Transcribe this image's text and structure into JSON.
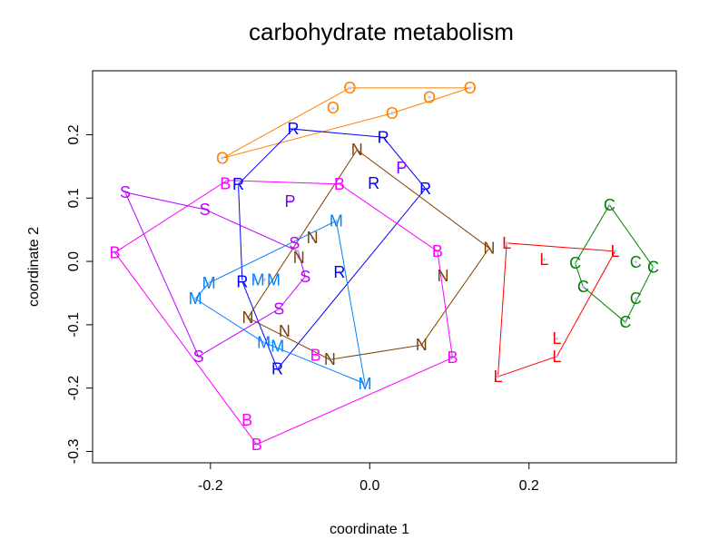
{
  "chart_data": {
    "type": "scatter",
    "title": "carbohydrate metabolism",
    "xlabel": "coordinate 1",
    "ylabel": "coordinate 2",
    "xlim": [
      -0.348,
      0.385
    ],
    "ylim": [
      -0.318,
      0.301
    ],
    "xticks": [
      -0.2,
      0.0,
      0.2
    ],
    "xtick_labels": [
      "-0.2",
      "0.0",
      "0.2"
    ],
    "yticks": [
      -0.3,
      -0.2,
      -0.1,
      0.0,
      0.1,
      0.2
    ],
    "ytick_labels": [
      "-0.3",
      "-0.2",
      "-0.1",
      "0.0",
      "0.1",
      "0.2"
    ],
    "grid": false,
    "hulls": true,
    "groups": [
      {
        "label": "O",
        "color": "#FF8000",
        "points": [
          [
            -0.185,
            0.163
          ],
          [
            -0.025,
            0.274
          ],
          [
            -0.046,
            0.242
          ],
          [
            0.028,
            0.234
          ],
          [
            0.075,
            0.259
          ],
          [
            0.126,
            0.274
          ]
        ]
      },
      {
        "label": "R",
        "color": "#0000FF",
        "points": [
          [
            -0.096,
            0.209
          ],
          [
            0.017,
            0.196
          ],
          [
            0.07,
            0.115
          ],
          [
            -0.165,
            0.122
          ],
          [
            0.005,
            0.123
          ],
          [
            -0.038,
            -0.017
          ],
          [
            -0.16,
            -0.032
          ],
          [
            -0.116,
            -0.17
          ]
        ]
      },
      {
        "label": "P",
        "color": "#8000FF",
        "points": [
          [
            0.04,
            0.148
          ],
          [
            -0.1,
            0.095
          ]
        ]
      },
      {
        "label": "N",
        "color": "#804000",
        "points": [
          [
            -0.016,
            0.176
          ],
          [
            -0.072,
            0.037
          ],
          [
            -0.089,
            0.006
          ],
          [
            -0.153,
            -0.089
          ],
          [
            -0.107,
            -0.11
          ],
          [
            -0.05,
            -0.155
          ],
          [
            0.065,
            -0.132
          ],
          [
            0.15,
            0.021
          ],
          [
            0.092,
            -0.023
          ]
        ]
      },
      {
        "label": "B",
        "color": "#FF00FF",
        "points": [
          [
            -0.179,
            0.128
          ],
          [
            -0.038,
            0.122
          ],
          [
            -0.32,
            0.014
          ],
          [
            0.085,
            0.016
          ],
          [
            0.104,
            -0.152
          ],
          [
            -0.068,
            -0.148
          ],
          [
            -0.154,
            -0.251
          ],
          [
            -0.142,
            -0.289
          ]
        ]
      },
      {
        "label": "S",
        "color": "#C000FF",
        "points": [
          [
            -0.307,
            0.109
          ],
          [
            -0.207,
            0.082
          ],
          [
            -0.09,
            0.016
          ],
          [
            -0.081,
            -0.024
          ],
          [
            -0.114,
            -0.075
          ],
          [
            -0.215,
            -0.15
          ]
        ]
      },
      {
        "label": "M",
        "color": "#0080FF",
        "points": [
          [
            -0.042,
            0.064
          ],
          [
            -0.202,
            -0.034
          ],
          [
            -0.219,
            -0.059
          ],
          [
            -0.145,
            -0.029
          ],
          [
            -0.132,
            -0.029
          ],
          [
            -0.133,
            -0.128
          ],
          [
            -0.126,
            -0.128
          ],
          [
            -0.006,
            -0.193
          ]
        ]
      },
      {
        "label": "L",
        "color": "#FF0000",
        "points": [
          [
            0.172,
            0.029
          ],
          [
            0.308,
            0.016
          ],
          [
            0.219,
            0.003
          ],
          [
            0.235,
            -0.122
          ],
          [
            0.235,
            -0.15
          ],
          [
            0.161,
            -0.182
          ]
        ]
      },
      {
        "label": "C",
        "color": "#008000",
        "points": [
          [
            0.301,
            0.089
          ],
          [
            0.258,
            -0.003
          ],
          [
            0.268,
            -0.04
          ],
          [
            0.334,
            -0.001
          ],
          [
            0.356,
            -0.009
          ],
          [
            0.334,
            -0.059
          ],
          [
            0.321,
            -0.096
          ]
        ]
      }
    ]
  }
}
